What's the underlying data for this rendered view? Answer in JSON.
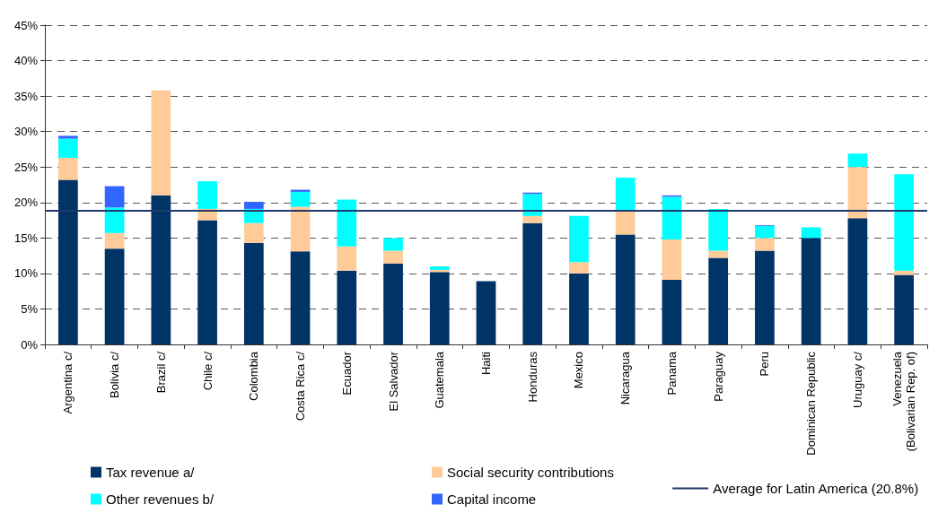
{
  "chart_data": {
    "type": "bar",
    "stacked": true,
    "categories": [
      "Argentina c/",
      "Bolivia c/",
      "Brazil c/",
      "Chile c/",
      "Colombia",
      "Costa Rica c/",
      "Ecuador",
      "El Salvador",
      "Guatemala",
      "Haiti",
      "Honduras",
      "Mexico",
      "Nicaragua",
      "Panama",
      "Paraguay",
      "Peru",
      "Dominican Republic",
      "Uruguay c/",
      "Venezuela\n(Bolivarian Rep. of)"
    ],
    "series": [
      {
        "name": "Tax revenue a/",
        "color": "#003366",
        "values": [
          23.2,
          13.5,
          21.0,
          17.5,
          14.3,
          13.1,
          10.4,
          11.4,
          10.2,
          8.9,
          17.1,
          10.0,
          15.5,
          9.1,
          12.2,
          13.2,
          15.0,
          17.8,
          9.8
        ]
      },
      {
        "name": "Social security contributions",
        "color": "#ffcc99",
        "values": [
          3.1,
          2.2,
          14.8,
          1.6,
          2.8,
          6.3,
          3.4,
          1.8,
          0.3,
          null,
          1.0,
          1.6,
          3.4,
          5.7,
          1.0,
          1.8,
          null,
          7.2,
          0.6
        ]
      },
      {
        "name": "Other revenues b/",
        "color": "#00ffff",
        "values": [
          2.7,
          3.6,
          null,
          3.9,
          2.0,
          2.1,
          6.6,
          1.8,
          0.5,
          null,
          3.1,
          6.5,
          4.6,
          6.0,
          5.9,
          1.7,
          1.5,
          1.9,
          13.6
        ]
      },
      {
        "name": "Capital income",
        "color": "#3366ff",
        "values": [
          0.4,
          3.0,
          null,
          null,
          1.0,
          0.3,
          null,
          null,
          null,
          null,
          0.2,
          null,
          null,
          0.2,
          null,
          0.1,
          null,
          null,
          null
        ]
      }
    ],
    "ylim": [
      0,
      45
    ],
    "yticks": [
      {
        "value": 0,
        "label": "0%"
      },
      {
        "value": 5,
        "label": "5%"
      },
      {
        "value": 10,
        "label": "10%"
      },
      {
        "value": 15,
        "label": "15%"
      },
      {
        "value": 20,
        "label": "20%"
      },
      {
        "value": 25,
        "label": "25%"
      },
      {
        "value": 30,
        "label": "30%"
      },
      {
        "value": 35,
        "label": "35%"
      },
      {
        "value": 40,
        "label": "40%"
      },
      {
        "value": 45,
        "label": "45%"
      }
    ],
    "grid": "y",
    "legend": "bottom",
    "ref_lines": [
      {
        "axis": "y",
        "value": 18.9,
        "label": "Average for Latin America (20.8%)",
        "color": "#1f3a6e",
        "line_style": "solid"
      }
    ]
  }
}
